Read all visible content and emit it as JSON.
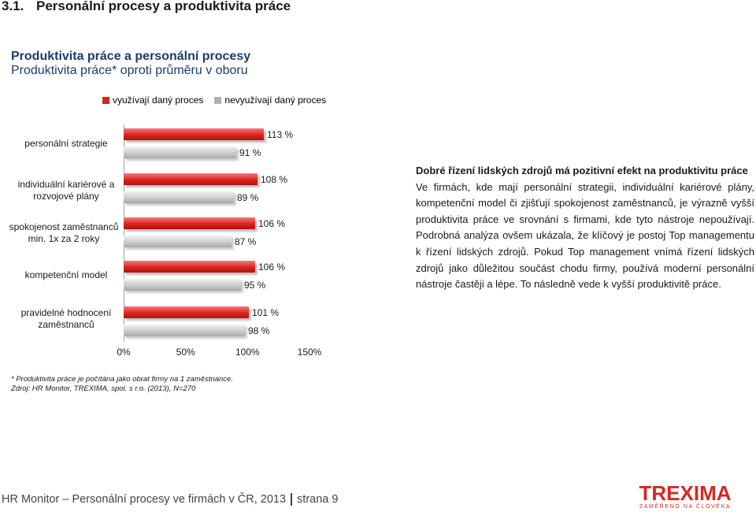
{
  "heading": {
    "number": "3.1.",
    "title": "Personální procesy a produktivita práce"
  },
  "chart_data": {
    "type": "bar",
    "orientation": "horizontal",
    "title": "Produktivita práce a personální procesy",
    "subtitle": "Produktivita práce* oproti průměru v oboru",
    "categories": [
      "personální strategie",
      "individuální kariérové a rozvojové plány",
      "spokojenost zaměstnanců min. 1x za 2 roky",
      "kompetenční model",
      "pravidelné hodnocení zaměstnanců"
    ],
    "series": [
      {
        "name": "využívají daný proces",
        "color": "#d9251f",
        "values": [
          113,
          108,
          106,
          106,
          101
        ],
        "labels": [
          "113 %",
          "108 %",
          "106 %",
          "106 %",
          "101 %"
        ]
      },
      {
        "name": "nevyužívají daný proces",
        "color": "#c0c0c0",
        "values": [
          91,
          89,
          87,
          95,
          98
        ],
        "labels": [
          "91 %",
          "89 %",
          "87 %",
          "95 %",
          "98 %"
        ]
      }
    ],
    "xlim": [
      0,
      150
    ],
    "xticks": [
      "0%",
      "50%",
      "100%",
      "150%"
    ],
    "legend_position": "top",
    "grid": false
  },
  "footnotes": [
    "* Produktivita práce je počítána jako obrat firmy na 1 zaměstnance.",
    "Zdroj: HR Monitor, TREXIMA, spol. s r.o. (2013), N=270"
  ],
  "text_block": {
    "heading": "Dobré řízení lidských zdrojů má pozitivní efekt na produktivitu práce",
    "body": "Ve firmách, kde mají personální strategii, individuální kariérové plány, kompetenční model či zjišťují spokojenost zaměstnanců, je výrazně vyšší produktivita práce ve srovnání s firmami, kde tyto nástroje nepoužívají. Podrobná analýza ovšem ukázala, že klíčový je postoj Top managementu k řízení lidských zdrojů. Pokud Top management vnímá řízení lidských zdrojů jako důležitou součást chodu firmy, používá moderní personální nástroje častěji a lépe. To následně vede k vyšší produktivitě práce."
  },
  "footer": {
    "left": "HR Monitor – Personální procesy ve firmách v ČR, 2013",
    "right": "strana 9"
  },
  "logo": {
    "name": "TREXIMA",
    "tagline": "ZAMĚŘENO NA ČLOVĚKA"
  }
}
